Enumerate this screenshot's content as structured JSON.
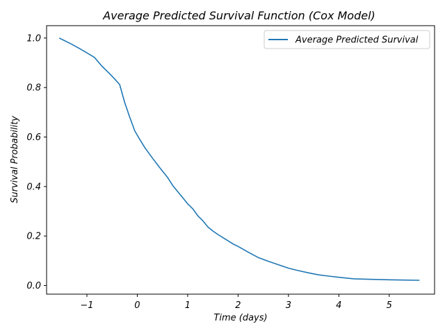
{
  "chart_data": {
    "type": "line",
    "title": "Average Predicted Survival Function (Cox Model)",
    "xlabel": "Time (days)",
    "ylabel": "Survival Probability",
    "xlim": [
      -1.8,
      5.9
    ],
    "ylim": [
      -0.035,
      1.05
    ],
    "xticks": [
      {
        "value": -1,
        "label": "−1"
      },
      {
        "value": 0,
        "label": "0"
      },
      {
        "value": 1,
        "label": "1"
      },
      {
        "value": 2,
        "label": "2"
      },
      {
        "value": 3,
        "label": "3"
      },
      {
        "value": 4,
        "label": "4"
      },
      {
        "value": 5,
        "label": "5"
      }
    ],
    "yticks": [
      {
        "value": 0.0,
        "label": "0.0"
      },
      {
        "value": 0.2,
        "label": "0.2"
      },
      {
        "value": 0.4,
        "label": "0.4"
      },
      {
        "value": 0.6,
        "label": "0.6"
      },
      {
        "value": 0.8,
        "label": "0.8"
      },
      {
        "value": 1.0,
        "label": "1.0"
      }
    ],
    "grid": false,
    "legend_position": "top-right",
    "series": [
      {
        "name": "Average Predicted Survival",
        "color": "#1f77b4",
        "x": [
          -1.55,
          -1.45,
          -1.3,
          -1.15,
          -1.0,
          -0.85,
          -0.7,
          -0.55,
          -0.45,
          -0.35,
          -0.25,
          -0.15,
          -0.05,
          0.05,
          0.15,
          0.3,
          0.45,
          0.6,
          0.7,
          0.8,
          0.9,
          1.0,
          1.1,
          1.2,
          1.3,
          1.4,
          1.5,
          1.6,
          1.75,
          1.9,
          2.0,
          2.2,
          2.4,
          2.6,
          2.8,
          3.0,
          3.2,
          3.4,
          3.6,
          3.8,
          4.0,
          4.3,
          4.6,
          5.0,
          5.3,
          5.6
        ],
        "y": [
          1.0,
          0.99,
          0.975,
          0.958,
          0.94,
          0.922,
          0.886,
          0.856,
          0.835,
          0.812,
          0.74,
          0.68,
          0.625,
          0.59,
          0.557,
          0.515,
          0.475,
          0.437,
          0.405,
          0.38,
          0.355,
          0.33,
          0.31,
          0.282,
          0.262,
          0.237,
          0.22,
          0.206,
          0.187,
          0.168,
          0.158,
          0.135,
          0.113,
          0.098,
          0.084,
          0.07,
          0.06,
          0.051,
          0.043,
          0.038,
          0.033,
          0.027,
          0.025,
          0.023,
          0.022,
          0.021
        ]
      }
    ]
  }
}
